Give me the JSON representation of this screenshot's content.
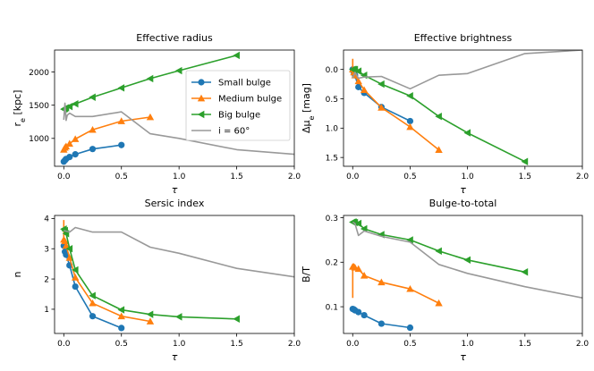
{
  "chart_data": [
    {
      "type": "line",
      "title": "Effective radius",
      "xlabel": "τ",
      "ylabel": "r_e [kpc]",
      "xlim": [
        -0.08,
        2.0
      ],
      "ylim": [
        580,
        2330
      ],
      "yinvert": false,
      "xticks": [
        0.0,
        0.5,
        1.0,
        1.5,
        2.0
      ],
      "xtick_labels": [
        "0.0",
        "0.5",
        "1.0",
        "1.5",
        "2.0"
      ],
      "yticks": [
        1000,
        1500,
        2000
      ],
      "ytick_labels": [
        "1000",
        "1500",
        "2000"
      ],
      "legend": [
        "Small bulge",
        "Medium bulge",
        "Big bulge",
        "i = 60°"
      ],
      "legend_position": "center-right",
      "series": [
        {
          "name": "Small bulge",
          "color": "#1f77b4",
          "marker": "circle",
          "x": [
            0,
            0.01,
            0.02,
            0.05,
            0.1,
            0.25,
            0.5
          ],
          "y": [
            650,
            670,
            690,
            720,
            760,
            840,
            900
          ]
        },
        {
          "name": "Medium bulge",
          "color": "#ff7f0e",
          "marker": "triangle-up",
          "x": [
            0,
            0.01,
            0.02,
            0.05,
            0.1,
            0.25,
            0.5,
            0.75
          ],
          "y": [
            830,
            860,
            880,
            920,
            990,
            1130,
            1260,
            1320
          ]
        },
        {
          "name": "Big bulge",
          "color": "#2ca02c",
          "marker": "triangle-left",
          "x": [
            0,
            0.01,
            0.02,
            0.05,
            0.1,
            0.25,
            0.5,
            0.75,
            1.0,
            1.5
          ],
          "y": [
            1440,
            1450,
            1460,
            1480,
            1520,
            1620,
            1760,
            1900,
            2020,
            2250
          ]
        },
        {
          "name": "i = 60°",
          "color": "#999999",
          "marker": "none",
          "x": [
            0.0,
            0.01,
            0.02,
            0.03,
            0.05,
            0.1,
            0.25,
            0.5,
            0.75,
            1.0,
            1.5,
            2.0
          ],
          "y": [
            1280,
            1530,
            1270,
            1350,
            1380,
            1330,
            1330,
            1400,
            1070,
            1000,
            830,
            760
          ]
        }
      ]
    },
    {
      "type": "line",
      "title": "Effective brightness",
      "xlabel": "τ",
      "ylabel": "Δμ_e [mag]",
      "xlim": [
        -0.08,
        2.0
      ],
      "ylim": [
        -0.33,
        1.65
      ],
      "yinvert": true,
      "xticks": [
        0.0,
        0.5,
        1.0,
        1.5,
        2.0
      ],
      "xtick_labels": [
        "0.0",
        "0.5",
        "1.0",
        "1.5",
        "2.0"
      ],
      "yticks": [
        0.0,
        0.5,
        1.0,
        1.5
      ],
      "ytick_labels": [
        "0.0",
        "0.5",
        "1.0",
        "1.5"
      ],
      "series": [
        {
          "name": "Small bulge",
          "color": "#1f77b4",
          "marker": "circle",
          "x": [
            0,
            0.01,
            0.02,
            0.05,
            0.1,
            0.25,
            0.5
          ],
          "y": [
            0.0,
            0.05,
            0.1,
            0.3,
            0.4,
            0.64,
            0.88
          ]
        },
        {
          "name": "Medium bulge",
          "color": "#ff7f0e",
          "marker": "triangle-up",
          "x": [
            0,
            0.0,
            0.01,
            0.02,
            0.05,
            0.1,
            0.25,
            0.5,
            0.75
          ],
          "y": [
            -0.18,
            0.0,
            0.05,
            0.1,
            0.2,
            0.35,
            0.65,
            0.98,
            1.37
          ]
        },
        {
          "name": "Big bulge",
          "color": "#2ca02c",
          "marker": "triangle-left",
          "x": [
            0,
            0.01,
            0.02,
            0.05,
            0.1,
            0.25,
            0.5,
            0.75,
            1.0,
            1.5
          ],
          "y": [
            0.0,
            0.0,
            0.0,
            0.03,
            0.1,
            0.25,
            0.45,
            0.8,
            1.08,
            1.57
          ]
        },
        {
          "name": "i = 60°",
          "color": "#999999",
          "marker": "none",
          "x": [
            0.0,
            0.02,
            0.05,
            0.1,
            0.25,
            0.5,
            0.75,
            1.0,
            1.5,
            2.0
          ],
          "y": [
            0.15,
            0.05,
            0.15,
            0.13,
            0.12,
            0.33,
            0.1,
            0.07,
            -0.27,
            -0.33
          ]
        }
      ]
    },
    {
      "type": "line",
      "title": "Sersic index",
      "xlabel": "τ",
      "ylabel": "n",
      "xlim": [
        -0.08,
        2.0
      ],
      "ylim": [
        0.2,
        4.1
      ],
      "yinvert": false,
      "xticks": [
        0.0,
        0.5,
        1.0,
        1.5,
        2.0
      ],
      "xtick_labels": [
        "0.0",
        "0.5",
        "1.0",
        "1.5",
        "2.0"
      ],
      "yticks": [
        1,
        2,
        3,
        4
      ],
      "ytick_labels": [
        "1",
        "2",
        "3",
        "4"
      ],
      "series": [
        {
          "name": "Small bulge",
          "color": "#1f77b4",
          "marker": "circle",
          "x": [
            0,
            0.01,
            0.02,
            0.05,
            0.1,
            0.25,
            0.5
          ],
          "y": [
            3.1,
            2.9,
            2.8,
            2.45,
            1.75,
            0.77,
            0.38
          ]
        },
        {
          "name": "Medium bulge",
          "color": "#ff7f0e",
          "marker": "triangle-up",
          "x": [
            0,
            0.0,
            0.01,
            0.02,
            0.05,
            0.1,
            0.25,
            0.5,
            0.75
          ],
          "y": [
            3.95,
            3.3,
            3.25,
            3.1,
            2.7,
            2.05,
            1.2,
            0.77,
            0.6
          ]
        },
        {
          "name": "Big bulge",
          "color": "#2ca02c",
          "marker": "triangle-left",
          "x": [
            0,
            0.01,
            0.02,
            0.05,
            0.1,
            0.25,
            0.5,
            0.75,
            1.0,
            1.5
          ],
          "y": [
            3.65,
            3.6,
            3.5,
            3.0,
            2.3,
            1.45,
            0.98,
            0.83,
            0.75,
            0.68
          ]
        },
        {
          "name": "i = 60°",
          "color": "#999999",
          "marker": "none",
          "x": [
            0.0,
            0.05,
            0.1,
            0.25,
            0.5,
            0.75,
            1.0,
            1.5,
            2.0
          ],
          "y": [
            3.6,
            3.55,
            3.7,
            3.55,
            3.55,
            3.05,
            2.85,
            2.35,
            2.07
          ]
        }
      ]
    },
    {
      "type": "line",
      "title": "Bulge-to-total",
      "xlabel": "τ",
      "ylabel": "B/T",
      "xlim": [
        -0.08,
        2.0
      ],
      "ylim": [
        0.04,
        0.305
      ],
      "yinvert": false,
      "xticks": [
        0.0,
        0.5,
        1.0,
        1.5,
        2.0
      ],
      "xtick_labels": [
        "0.0",
        "0.5",
        "1.0",
        "1.5",
        "2.0"
      ],
      "yticks": [
        0.1,
        0.2,
        0.3
      ],
      "ytick_labels": [
        "0.1",
        "0.2",
        "0.3"
      ],
      "series": [
        {
          "name": "Small bulge",
          "color": "#1f77b4",
          "marker": "circle",
          "x": [
            0,
            0.01,
            0.02,
            0.05,
            0.1,
            0.25,
            0.5
          ],
          "y": [
            0.095,
            0.094,
            0.092,
            0.088,
            0.081,
            0.062,
            0.053
          ]
        },
        {
          "name": "Medium bulge",
          "color": "#ff7f0e",
          "marker": "triangle-up",
          "x": [
            0,
            0.0,
            0.01,
            0.02,
            0.05,
            0.1,
            0.25,
            0.5,
            0.75
          ],
          "y": [
            0.12,
            0.19,
            0.19,
            0.188,
            0.185,
            0.17,
            0.155,
            0.14,
            0.108
          ]
        },
        {
          "name": "Big bulge",
          "color": "#2ca02c",
          "marker": "triangle-left",
          "x": [
            0,
            0.01,
            0.02,
            0.05,
            0.1,
            0.25,
            0.5,
            0.75,
            1.0,
            1.5
          ],
          "y": [
            0.29,
            0.29,
            0.289,
            0.287,
            0.275,
            0.262,
            0.25,
            0.225,
            0.205,
            0.178
          ]
        },
        {
          "name": "i = 60°",
          "color": "#999999",
          "marker": "none",
          "x": [
            0.0,
            0.02,
            0.05,
            0.1,
            0.25,
            0.5,
            0.75,
            1.0,
            1.5,
            2.0
          ],
          "y": [
            0.29,
            0.287,
            0.26,
            0.27,
            0.258,
            0.245,
            0.195,
            0.175,
            0.145,
            0.12
          ]
        }
      ]
    }
  ]
}
